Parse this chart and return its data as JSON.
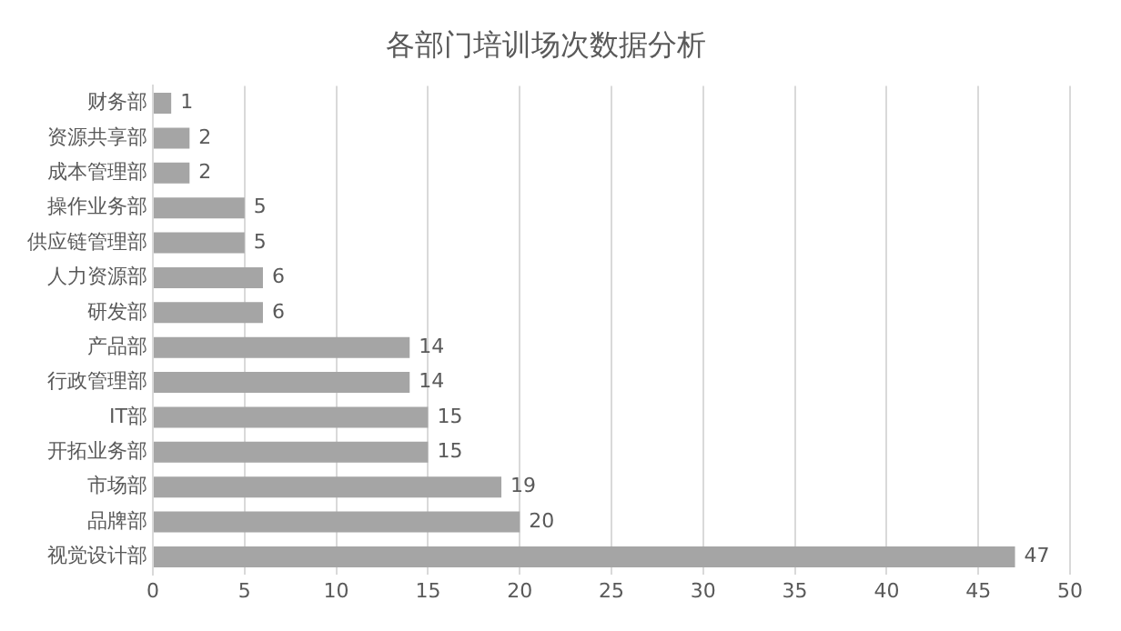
{
  "chart_data": {
    "type": "bar",
    "orientation": "horizontal",
    "title": "各部门培训场次数据分析",
    "categories": [
      "财务部",
      "资源共享部",
      "成本管理部",
      "操作业务部",
      "供应链管理部",
      "人力资源部",
      "研发部",
      "产品部",
      "行政管理部",
      "IT部",
      "开拓业务部",
      "市场部",
      "品牌部",
      "视觉设计部"
    ],
    "values": [
      1,
      2,
      2,
      5,
      5,
      6,
      6,
      14,
      14,
      15,
      15,
      19,
      20,
      47
    ],
    "color": "#a5a5a5",
    "xlim": [
      0,
      50
    ],
    "xticks": [
      0,
      5,
      10,
      15,
      20,
      25,
      30,
      35,
      40,
      45,
      50
    ],
    "grid": "x",
    "legend": false,
    "data_labels": true
  }
}
